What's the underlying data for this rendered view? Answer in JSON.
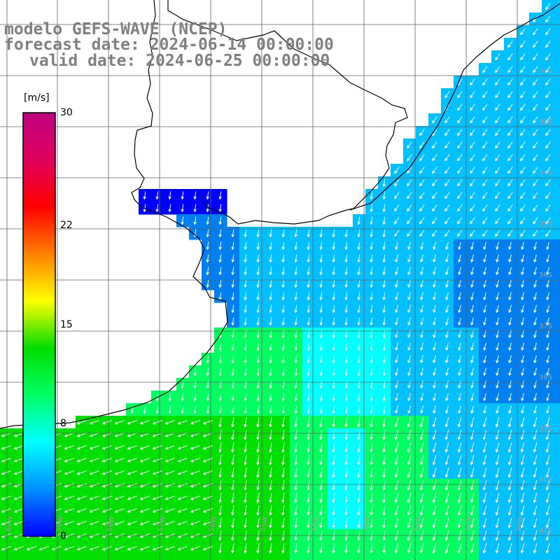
{
  "header": {
    "model": "modelo GEFS-WAVE (NCEP)",
    "forecast": "forecast date: 2024-06-14 00:00:00",
    "valid": "valid date: 2024-06-25 00:00:00"
  },
  "colorbar": {
    "unit": "[m/s]",
    "ticks": [
      {
        "label": "30",
        "value": 30
      },
      {
        "label": "22",
        "value": 22
      },
      {
        "label": "15",
        "value": 15
      },
      {
        "label": "8",
        "value": 8
      },
      {
        "label": "0",
        "value": 0
      }
    ],
    "stops": [
      "#0000ff",
      "#0090ff",
      "#00ffff",
      "#00ff66",
      "#00dd00",
      "#ffff00",
      "#ff8000",
      "#ff0000",
      "#e0005a",
      "#c00080"
    ]
  },
  "map": {
    "lat_labels": [
      "32S",
      "33S",
      "34S",
      "35S",
      "36S",
      "37S",
      "38S",
      "39S",
      "40S",
      "41S"
    ],
    "lon_labels": [
      "60W",
      "59W",
      "58W",
      "57W",
      "56W",
      "55W",
      "54W",
      "53W",
      "52W",
      "51W",
      "50W"
    ],
    "colors": {
      "land": "#ffffff",
      "deep_blue": "#0000ff",
      "blue": "#0080f0",
      "light_blue": "#00c0ff",
      "cyan": "#00ffff",
      "green": "#00ff60",
      "bright_green": "#00e000",
      "arrow": "#ffffff",
      "grid": "#606060",
      "coast": "#000000"
    }
  }
}
